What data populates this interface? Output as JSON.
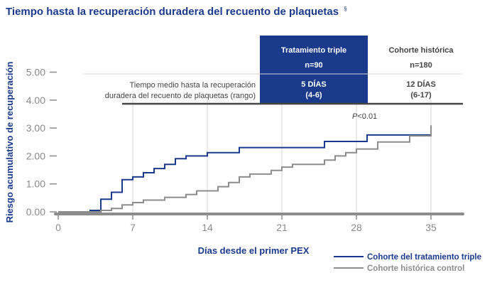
{
  "colors": {
    "navy": "#1a3a8c",
    "gray": "#8c8c8c",
    "axis": "#8c8c8c",
    "grid": "#d6d6d6",
    "tick_text": "#8a8a8a",
    "white": "#ffffff",
    "body_text": "#444444"
  },
  "chart_data": {
    "type": "line",
    "title": "Tiempo hasta la recuperación duradera del recuento de plaquetas",
    "title_note": "§",
    "xlabel": "Días desde el primer PEX",
    "ylabel": "Riesgo acumulativo de recuperación",
    "xlim": [
      0,
      38
    ],
    "ylim": [
      0,
      5
    ],
    "xticks": [
      0,
      7,
      14,
      21,
      28,
      35
    ],
    "xtick_labels": [
      "0",
      "7",
      "14",
      "21",
      "28",
      "35"
    ],
    "yticks": [
      0,
      1,
      2,
      3,
      4,
      5
    ],
    "ytick_labels": [
      "0.00",
      "1.00",
      "2.00",
      "3.00",
      "4.00",
      "5.00"
    ],
    "annotation": {
      "italic": "P",
      "text": "<0.01",
      "x": 28,
      "y": 3.1
    },
    "series": [
      {
        "name": "Cohorte del tratamiento triple",
        "color_key": "navy",
        "step_points": [
          [
            0,
            0
          ],
          [
            3,
            0
          ],
          [
            3,
            0.05
          ],
          [
            4,
            0.05
          ],
          [
            4,
            0.45
          ],
          [
            5,
            0.45
          ],
          [
            5,
            0.7
          ],
          [
            6,
            0.7
          ],
          [
            6,
            1.15
          ],
          [
            7,
            1.15
          ],
          [
            7,
            1.25
          ],
          [
            8,
            1.25
          ],
          [
            8,
            1.4
          ],
          [
            9,
            1.4
          ],
          [
            9,
            1.55
          ],
          [
            10,
            1.55
          ],
          [
            10,
            1.7
          ],
          [
            11,
            1.7
          ],
          [
            11,
            1.9
          ],
          [
            12,
            1.9
          ],
          [
            12,
            2.0
          ],
          [
            14,
            2.0
          ],
          [
            14,
            2.12
          ],
          [
            17,
            2.12
          ],
          [
            17,
            2.3
          ],
          [
            25,
            2.3
          ],
          [
            25,
            2.52
          ],
          [
            29,
            2.52
          ],
          [
            29,
            2.75
          ],
          [
            35,
            2.75
          ]
        ]
      },
      {
        "name": "Cohorte histórica control",
        "color_key": "gray",
        "step_points": [
          [
            0,
            0
          ],
          [
            4,
            0
          ],
          [
            4,
            0.05
          ],
          [
            5,
            0.05
          ],
          [
            5,
            0.12
          ],
          [
            6,
            0.12
          ],
          [
            6,
            0.25
          ],
          [
            7,
            0.25
          ],
          [
            7,
            0.33
          ],
          [
            8,
            0.33
          ],
          [
            8,
            0.42
          ],
          [
            10,
            0.42
          ],
          [
            10,
            0.52
          ],
          [
            12,
            0.52
          ],
          [
            12,
            0.62
          ],
          [
            13,
            0.62
          ],
          [
            13,
            0.75
          ],
          [
            15,
            0.75
          ],
          [
            15,
            0.9
          ],
          [
            16,
            0.9
          ],
          [
            16,
            1.05
          ],
          [
            17,
            1.05
          ],
          [
            17,
            1.25
          ],
          [
            18,
            1.25
          ],
          [
            18,
            1.35
          ],
          [
            20,
            1.35
          ],
          [
            20,
            1.48
          ],
          [
            21,
            1.48
          ],
          [
            21,
            1.6
          ],
          [
            22,
            1.6
          ],
          [
            22,
            1.7
          ],
          [
            25,
            1.7
          ],
          [
            25,
            1.85
          ],
          [
            26,
            1.85
          ],
          [
            26,
            2.0
          ],
          [
            27,
            2.0
          ],
          [
            27,
            2.12
          ],
          [
            28,
            2.12
          ],
          [
            28,
            2.25
          ],
          [
            30,
            2.25
          ],
          [
            30,
            2.5
          ],
          [
            33,
            2.5
          ],
          [
            33,
            2.72
          ],
          [
            35,
            2.72
          ],
          [
            35,
            2.95
          ],
          [
            35,
            3.1
          ]
        ]
      }
    ]
  },
  "table": {
    "row_label_line1": "Tiempo medio hasta la recuperación",
    "row_label_line2": "duradera del recuento de plaquetas (rango)",
    "columns": [
      {
        "header": "Tratamiento triple",
        "n": "n=90",
        "value_line1": "5 DÍAS",
        "value_line2": "(4-6)",
        "highlight": true
      },
      {
        "header": "Cohorte histórica",
        "n": "n=180",
        "value_line1": "12 DÍAS",
        "value_line2": "(6-17)",
        "highlight": false
      }
    ]
  }
}
